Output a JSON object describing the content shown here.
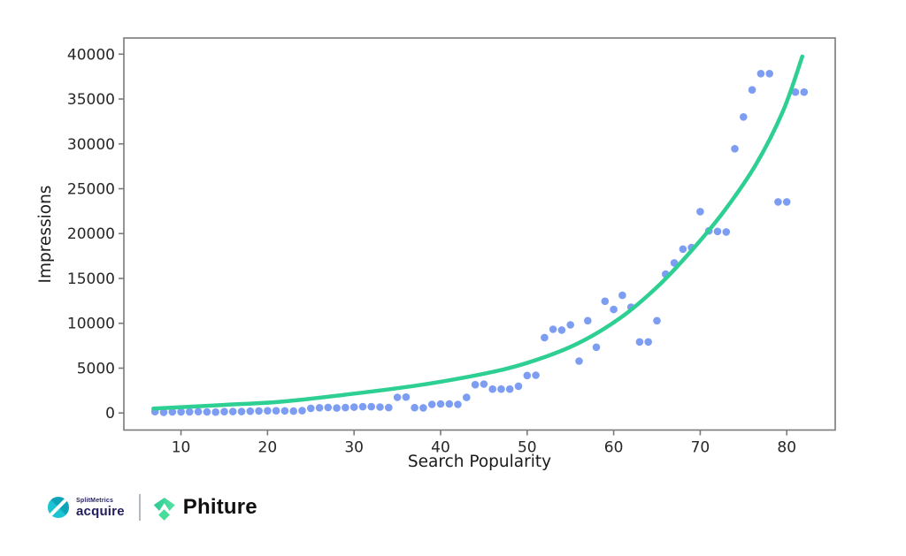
{
  "figure": {
    "background": "#ffffff",
    "axis_color": "#7a7a7a",
    "tick_label_color": "#262626"
  },
  "chart_data": {
    "type": "scatter",
    "title": "",
    "xlabel": "Search Popularity",
    "ylabel": "Impressions",
    "xlim": [
      3.4,
      85.6
    ],
    "ylim": [
      -1900,
      41800
    ],
    "xticks": [
      10,
      20,
      30,
      40,
      50,
      60,
      70,
      80
    ],
    "yticks": [
      0,
      5000,
      10000,
      15000,
      20000,
      25000,
      30000,
      35000,
      40000
    ],
    "grid": false,
    "legend": null,
    "series": [
      {
        "name": "impressions-scatter",
        "type": "scatter",
        "color": "#7d9df2",
        "marker_radius": 4.3,
        "points": [
          [
            7,
            150
          ],
          [
            8,
            80
          ],
          [
            9,
            120
          ],
          [
            10,
            130
          ],
          [
            11,
            130
          ],
          [
            12,
            150
          ],
          [
            13,
            120
          ],
          [
            14,
            100
          ],
          [
            15,
            150
          ],
          [
            16,
            160
          ],
          [
            17,
            160
          ],
          [
            18,
            200
          ],
          [
            19,
            230
          ],
          [
            20,
            250
          ],
          [
            21,
            250
          ],
          [
            22,
            240
          ],
          [
            23,
            210
          ],
          [
            24,
            260
          ],
          [
            25,
            520
          ],
          [
            26,
            580
          ],
          [
            27,
            620
          ],
          [
            28,
            550
          ],
          [
            29,
            600
          ],
          [
            30,
            650
          ],
          [
            31,
            700
          ],
          [
            32,
            700
          ],
          [
            33,
            660
          ],
          [
            34,
            600
          ],
          [
            35,
            1750
          ],
          [
            36,
            1780
          ],
          [
            37,
            590
          ],
          [
            38,
            570
          ],
          [
            39,
            960
          ],
          [
            40,
            1010
          ],
          [
            41,
            1010
          ],
          [
            42,
            960
          ],
          [
            43,
            1740
          ],
          [
            44,
            3150
          ],
          [
            45,
            3220
          ],
          [
            46,
            2660
          ],
          [
            47,
            2660
          ],
          [
            48,
            2660
          ],
          [
            49,
            2990
          ],
          [
            50,
            4180
          ],
          [
            51,
            4210
          ],
          [
            52,
            8410
          ],
          [
            53,
            9330
          ],
          [
            54,
            9240
          ],
          [
            55,
            9830
          ],
          [
            56,
            5790
          ],
          [
            57,
            10290
          ],
          [
            58,
            7330
          ],
          [
            59,
            12460
          ],
          [
            60,
            11540
          ],
          [
            61,
            13120
          ],
          [
            62,
            11800
          ],
          [
            63,
            7920
          ],
          [
            64,
            7920
          ],
          [
            65,
            10290
          ],
          [
            66,
            15480
          ],
          [
            67,
            16730
          ],
          [
            68,
            18270
          ],
          [
            69,
            18440
          ],
          [
            70,
            22450
          ],
          [
            71,
            20300
          ],
          [
            72,
            20240
          ],
          [
            73,
            20180
          ],
          [
            74,
            29450
          ],
          [
            75,
            33000
          ],
          [
            76,
            36020
          ],
          [
            77,
            37830
          ],
          [
            78,
            37830
          ],
          [
            79,
            23530
          ],
          [
            80,
            23530
          ],
          [
            81,
            35770
          ],
          [
            82,
            35770
          ]
        ]
      },
      {
        "name": "exponential-fit",
        "type": "line",
        "color": "#2ecf92",
        "line_width": 4.5,
        "points": [
          [
            6.8,
            490
          ],
          [
            14.7,
            890
          ],
          [
            21.8,
            1280
          ],
          [
            30.1,
            2170
          ],
          [
            37.2,
            3060
          ],
          [
            44.3,
            4240
          ],
          [
            49.8,
            5520
          ],
          [
            55.5,
            7590
          ],
          [
            60.7,
            10550
          ],
          [
            65.3,
            14300
          ],
          [
            69.3,
            18440
          ],
          [
            72.9,
            22680
          ],
          [
            76.5,
            27810
          ],
          [
            79.6,
            33730
          ],
          [
            81.8,
            39740
          ]
        ]
      }
    ]
  },
  "footer": {
    "splitmetrics": {
      "brand": "SplitMetrics",
      "product": "acquire",
      "icon_color": "#12b7c8",
      "text_color": "#221d5d"
    },
    "phiture": {
      "label": "Phiture",
      "icon_color": "#3bd68f",
      "text_color": "#101010"
    }
  }
}
